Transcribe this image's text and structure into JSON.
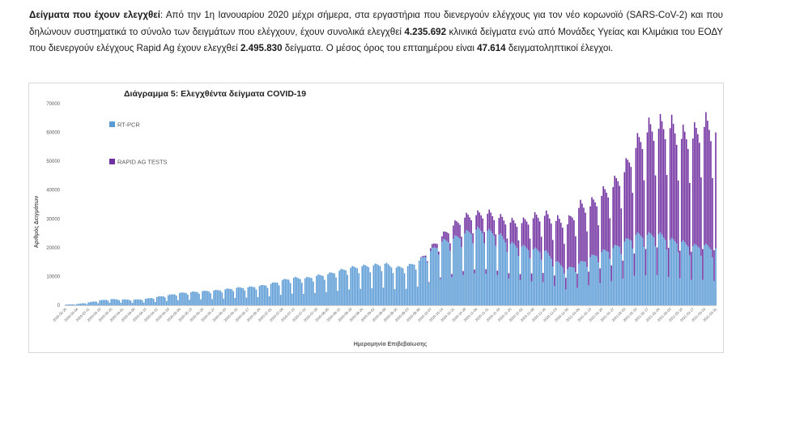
{
  "paragraph": {
    "bold_heading": "Δείγματα που έχουν ελεγχθεί",
    "t1": ":  Από την 1η Ιανουαρίου 2020 μέχρι σήμερα, στα εργαστήρια που διενεργούν ελέγχους για τον νέο κορωνοϊό (SARS-CoV-2) και που δηλώνουν συστηματικά το σύνολο των δειγμάτων που ελέγχουν, έχουν συνολικά ελεγχθεί ",
    "total_pcr": "4.235.692",
    "t2": " κλινικά δείγματα ενώ από Μονάδες Υγείας και Κλιμάκια του ΕΟΔΥ που διενεργούν ελέγχους Rapid Ag έχουν ελεγχθεί ",
    "total_rapid": "2.495.830",
    "t3": " δείγματα.  Ο μέσος όρος του επταημέρου είναι ",
    "weekly_avg": "47.614",
    "t4": " δειγματοληπτικοί έλεγχοι."
  },
  "chart_data": {
    "type": "bar",
    "stacked": true,
    "title": "Διάγραμμα 5: Ελεγχθέντα δείγματα COVID-19",
    "xlabel": "Ημερομηνία Επιβεβαίωσης",
    "ylabel": "Αριθμός Δειγμάτων",
    "ylim": [
      0,
      70000
    ],
    "y_ticks": [
      0,
      10000,
      20000,
      30000,
      40000,
      50000,
      60000,
      70000
    ],
    "grid": false,
    "legend_position": "left",
    "x_start": "2020-02-26",
    "x_end": "2021-03-31",
    "x_tick_labels": [
      "2020-02-26",
      "2020-03-04",
      "2020-03-11",
      "2020-03-18",
      "2020-03-25",
      "2020-04-01",
      "2020-04-08",
      "2020-04-15",
      "2020-04-22",
      "2020-04-29",
      "2020-05-06",
      "2020-05-13",
      "2020-05-20",
      "2020-05-27",
      "2020-06-03",
      "2020-06-10",
      "2020-06-17",
      "2020-06-24",
      "2020-07-01",
      "2020-07-08",
      "2020-07-15",
      "2020-07-22",
      "2020-07-29",
      "2020-08-05",
      "2020-08-12",
      "2020-08-19",
      "2020-08-26",
      "2020-09-02",
      "2020-09-09",
      "2020-09-16",
      "2020-09-23",
      "2020-09-30",
      "2020-10-07",
      "2020-10-14",
      "2020-10-21",
      "2020-10-28",
      "2020-11-04",
      "2020-11-11",
      "2020-11-18",
      "2020-11-25",
      "2020-12-02",
      "2020-12-09",
      "2020-12-16",
      "2020-12-23",
      "2020-12-30",
      "2021-01-06",
      "2021-01-13",
      "2021-01-20",
      "2021-01-27",
      "2021-02-03",
      "2021-02-10",
      "2021-02-17",
      "2021-02-24",
      "2021-03-03",
      "2021-03-10",
      "2021-03-17",
      "2021-03-24",
      "2021-03-31"
    ],
    "series": [
      {
        "name": "RT-PCR",
        "color": "#5b9bd5",
        "weekly_values": [
          200,
          400,
          900,
          1600,
          2000,
          1900,
          1800,
          2100,
          2700,
          3300,
          4000,
          4300,
          4600,
          4800,
          5200,
          5700,
          5900,
          6300,
          7000,
          8200,
          9000,
          8800,
          9600,
          10200,
          11300,
          12300,
          12800,
          13100,
          13600,
          12300,
          12800,
          14600,
          17700,
          20800,
          21800,
          23500,
          24800,
          24300,
          23100,
          20100,
          19200,
          18300,
          17800,
          14300,
          11800,
          13600,
          15700,
          17400,
          18700,
          20800,
          23000,
          23000,
          23300,
          21400,
          20700,
          19300,
          19600,
          18600
        ]
      },
      {
        "name": "RAPID AG TESTS",
        "color": "#7030a0",
        "weekly_values": [
          0,
          0,
          0,
          0,
          0,
          0,
          0,
          0,
          0,
          0,
          0,
          0,
          0,
          0,
          0,
          0,
          0,
          0,
          0,
          0,
          0,
          0,
          0,
          0,
          0,
          0,
          0,
          0,
          0,
          0,
          0,
          0,
          1000,
          1800,
          4300,
          5200,
          4700,
          5700,
          5500,
          7000,
          7700,
          10200,
          11500,
          13300,
          14700,
          18300,
          16700,
          18400,
          20000,
          22800,
          28500,
          33600,
          34500,
          36600,
          33800,
          35300,
          38800,
          38000
        ]
      }
    ]
  }
}
